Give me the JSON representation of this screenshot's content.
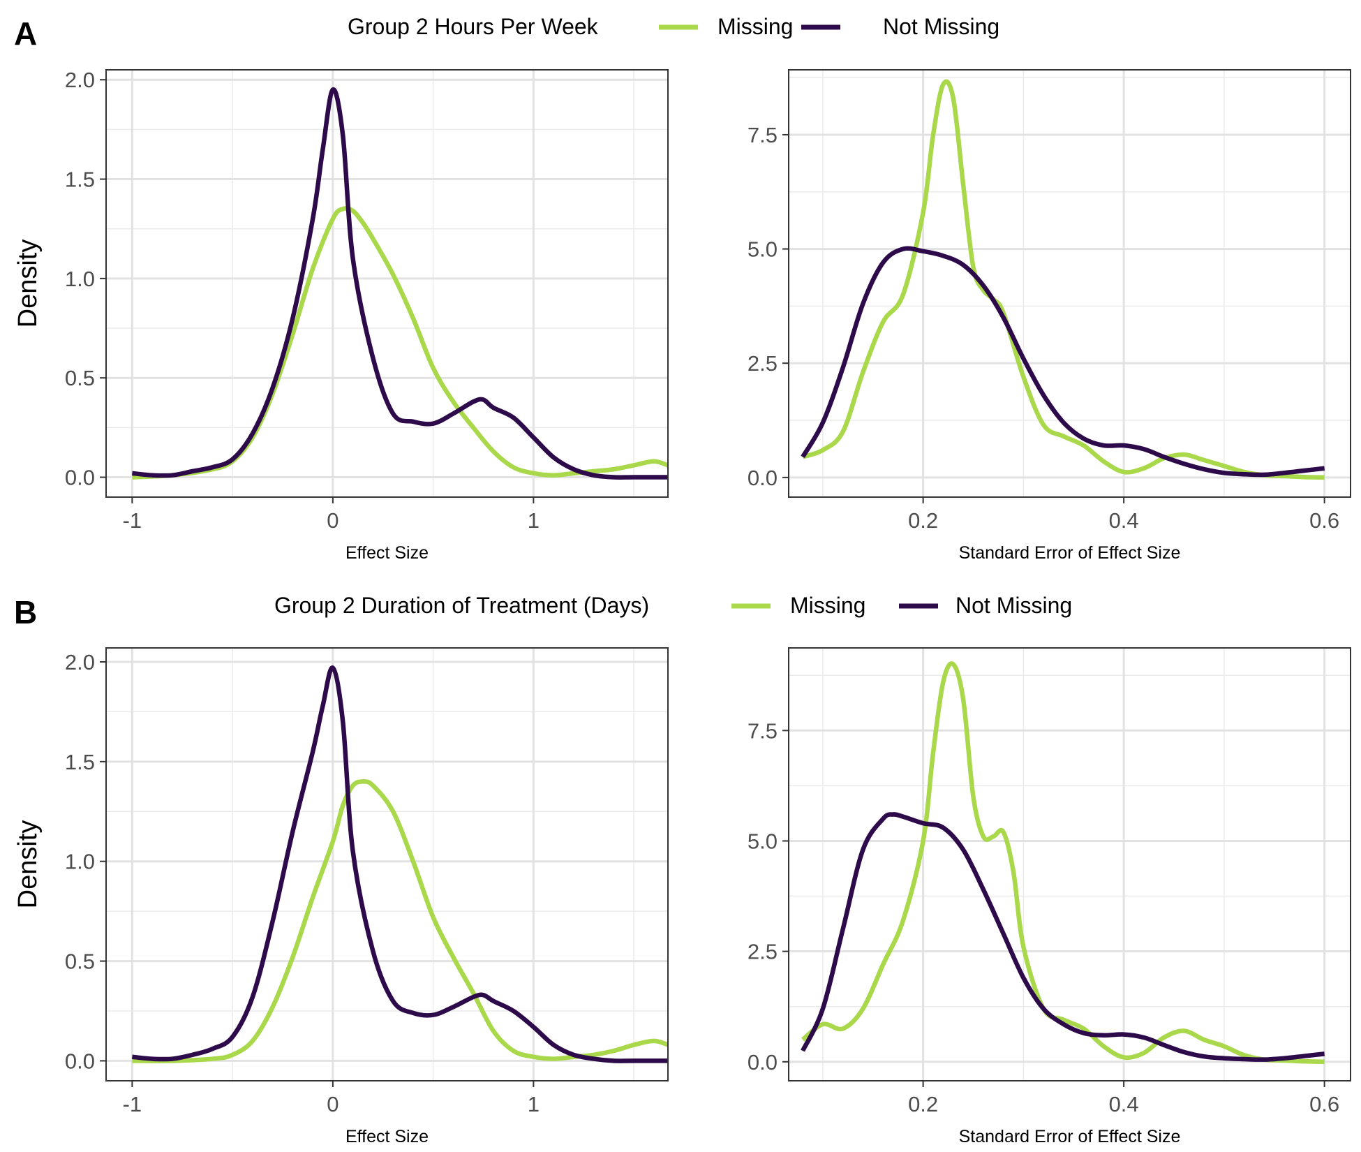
{
  "panels": [
    {
      "label": "A",
      "legend": {
        "title": "Group 2 Hours Per Week",
        "items": [
          "Missing",
          "Not Missing"
        ]
      }
    },
    {
      "label": "B",
      "legend": {
        "title": "Group 2 Duration of Treatment (Days)",
        "items": [
          "Missing",
          "Not Missing"
        ]
      }
    }
  ],
  "colors": {
    "missing": "#a9d84a",
    "not_missing": "#2d0a4a"
  },
  "chart_data": [
    {
      "type": "line",
      "panel": "A",
      "xlabel": "Effect Size",
      "ylabel": "Density",
      "xlim": [
        -1.13,
        1.67
      ],
      "ylim": [
        -0.1,
        2.05
      ],
      "x_ticks": [
        -1,
        0,
        1
      ],
      "x_tick_labels": [
        "-1",
        "0",
        "1"
      ],
      "y_ticks": [
        0,
        0.5,
        1.0,
        1.5,
        2.0
      ],
      "y_tick_labels": [
        "0.0",
        "0.5",
        "1.0",
        "1.5",
        "2.0"
      ],
      "grid": true,
      "series": [
        {
          "name": "Missing",
          "color": "#a9d84a",
          "x": [
            -1.0,
            -0.8,
            -0.6,
            -0.5,
            -0.4,
            -0.3,
            -0.2,
            -0.1,
            0.0,
            0.05,
            0.1,
            0.15,
            0.2,
            0.3,
            0.4,
            0.5,
            0.6,
            0.7,
            0.8,
            0.9,
            1.0,
            1.1,
            1.2,
            1.3,
            1.4,
            1.5,
            1.6,
            1.67
          ],
          "y": [
            0.0,
            0.01,
            0.04,
            0.08,
            0.2,
            0.42,
            0.72,
            1.05,
            1.3,
            1.35,
            1.34,
            1.28,
            1.2,
            1.02,
            0.8,
            0.55,
            0.38,
            0.25,
            0.13,
            0.05,
            0.02,
            0.01,
            0.02,
            0.03,
            0.04,
            0.06,
            0.08,
            0.06
          ]
        },
        {
          "name": "Not Missing",
          "color": "#2d0a4a",
          "x": [
            -1.0,
            -0.9,
            -0.8,
            -0.7,
            -0.6,
            -0.5,
            -0.4,
            -0.3,
            -0.2,
            -0.1,
            -0.05,
            0.0,
            0.05,
            0.1,
            0.2,
            0.3,
            0.4,
            0.5,
            0.6,
            0.7,
            0.75,
            0.8,
            0.9,
            1.0,
            1.1,
            1.2,
            1.3,
            1.4,
            1.5,
            1.67
          ],
          "y": [
            0.02,
            0.01,
            0.01,
            0.03,
            0.05,
            0.09,
            0.22,
            0.45,
            0.8,
            1.3,
            1.65,
            1.95,
            1.72,
            1.1,
            0.6,
            0.32,
            0.28,
            0.27,
            0.32,
            0.38,
            0.39,
            0.35,
            0.3,
            0.2,
            0.1,
            0.04,
            0.01,
            0.0,
            0.0,
            0.0
          ]
        }
      ]
    },
    {
      "type": "line",
      "panel": "A",
      "xlabel": "Standard Error of Effect Size",
      "ylabel": "",
      "xlim": [
        0.066,
        0.626
      ],
      "ylim": [
        -0.43,
        8.92
      ],
      "x_ticks": [
        0.2,
        0.4,
        0.6
      ],
      "x_tick_labels": [
        "0.2",
        "0.4",
        "0.6"
      ],
      "y_ticks": [
        0,
        2.5,
        5.0,
        7.5
      ],
      "y_tick_labels": [
        "0.0",
        "2.5",
        "5.0",
        "7.5"
      ],
      "grid": true,
      "series": [
        {
          "name": "Missing",
          "color": "#a9d84a",
          "x": [
            0.08,
            0.1,
            0.12,
            0.14,
            0.16,
            0.18,
            0.2,
            0.21,
            0.22,
            0.23,
            0.24,
            0.25,
            0.26,
            0.27,
            0.28,
            0.3,
            0.32,
            0.34,
            0.36,
            0.38,
            0.4,
            0.42,
            0.44,
            0.46,
            0.48,
            0.5,
            0.52,
            0.54,
            0.56,
            0.58,
            0.6
          ],
          "y": [
            0.45,
            0.6,
            1.0,
            2.3,
            3.4,
            4.0,
            5.8,
            7.5,
            8.6,
            8.3,
            6.4,
            4.6,
            4.1,
            3.9,
            3.6,
            2.2,
            1.15,
            0.9,
            0.7,
            0.35,
            0.12,
            0.2,
            0.42,
            0.5,
            0.38,
            0.25,
            0.12,
            0.05,
            0.03,
            0.01,
            0.0
          ]
        },
        {
          "name": "Not Missing",
          "color": "#2d0a4a",
          "x": [
            0.08,
            0.1,
            0.12,
            0.14,
            0.16,
            0.18,
            0.2,
            0.22,
            0.24,
            0.26,
            0.28,
            0.3,
            0.32,
            0.34,
            0.36,
            0.38,
            0.4,
            0.42,
            0.44,
            0.46,
            0.48,
            0.5,
            0.52,
            0.54,
            0.56,
            0.58,
            0.6
          ],
          "y": [
            0.45,
            1.2,
            2.4,
            3.8,
            4.7,
            5.0,
            4.95,
            4.85,
            4.65,
            4.2,
            3.5,
            2.6,
            1.8,
            1.2,
            0.85,
            0.7,
            0.7,
            0.62,
            0.45,
            0.3,
            0.18,
            0.1,
            0.07,
            0.06,
            0.1,
            0.15,
            0.2
          ]
        }
      ]
    },
    {
      "type": "line",
      "panel": "B",
      "xlabel": "Effect Size",
      "ylabel": "Density",
      "xlim": [
        -1.13,
        1.67
      ],
      "ylim": [
        -0.1,
        2.07
      ],
      "x_ticks": [
        -1,
        0,
        1
      ],
      "x_tick_labels": [
        "-1",
        "0",
        "1"
      ],
      "y_ticks": [
        0,
        0.5,
        1.0,
        1.5,
        2.0
      ],
      "y_tick_labels": [
        "0.0",
        "0.5",
        "1.0",
        "1.5",
        "2.0"
      ],
      "grid": true,
      "series": [
        {
          "name": "Missing",
          "color": "#a9d84a",
          "x": [
            -1.0,
            -0.8,
            -0.6,
            -0.5,
            -0.4,
            -0.3,
            -0.2,
            -0.1,
            0.0,
            0.05,
            0.1,
            0.15,
            0.2,
            0.3,
            0.4,
            0.5,
            0.6,
            0.7,
            0.8,
            0.9,
            1.0,
            1.1,
            1.2,
            1.3,
            1.4,
            1.5,
            1.6,
            1.67
          ],
          "y": [
            0.0,
            0.0,
            0.01,
            0.03,
            0.1,
            0.27,
            0.52,
            0.82,
            1.1,
            1.28,
            1.38,
            1.4,
            1.38,
            1.25,
            1.0,
            0.72,
            0.52,
            0.34,
            0.15,
            0.05,
            0.02,
            0.01,
            0.02,
            0.03,
            0.05,
            0.08,
            0.1,
            0.08
          ]
        },
        {
          "name": "Not Missing",
          "color": "#2d0a4a",
          "x": [
            -1.0,
            -0.9,
            -0.8,
            -0.7,
            -0.6,
            -0.5,
            -0.4,
            -0.3,
            -0.2,
            -0.1,
            -0.05,
            0.0,
            0.05,
            0.1,
            0.2,
            0.3,
            0.4,
            0.5,
            0.6,
            0.7,
            0.75,
            0.8,
            0.9,
            1.0,
            1.1,
            1.2,
            1.3,
            1.4,
            1.5,
            1.67
          ],
          "y": [
            0.02,
            0.01,
            0.01,
            0.03,
            0.06,
            0.12,
            0.32,
            0.7,
            1.15,
            1.55,
            1.78,
            1.97,
            1.7,
            1.05,
            0.55,
            0.3,
            0.24,
            0.23,
            0.27,
            0.32,
            0.33,
            0.3,
            0.25,
            0.17,
            0.08,
            0.03,
            0.01,
            0.0,
            0.0,
            0.0
          ]
        }
      ]
    },
    {
      "type": "line",
      "panel": "B",
      "xlabel": "Standard Error of Effect Size",
      "ylabel": "",
      "xlim": [
        0.066,
        0.626
      ],
      "ylim": [
        -0.43,
        9.37
      ],
      "x_ticks": [
        0.2,
        0.4,
        0.6
      ],
      "x_tick_labels": [
        "0.2",
        "0.4",
        "0.6"
      ],
      "y_ticks": [
        0,
        2.5,
        5.0,
        7.5
      ],
      "y_tick_labels": [
        "0.0",
        "2.5",
        "5.0",
        "7.5"
      ],
      "grid": true,
      "series": [
        {
          "name": "Missing",
          "color": "#a9d84a",
          "x": [
            0.08,
            0.1,
            0.12,
            0.14,
            0.16,
            0.18,
            0.2,
            0.21,
            0.22,
            0.23,
            0.24,
            0.25,
            0.26,
            0.27,
            0.28,
            0.29,
            0.3,
            0.32,
            0.34,
            0.36,
            0.38,
            0.4,
            0.42,
            0.44,
            0.46,
            0.48,
            0.5,
            0.52,
            0.54,
            0.56,
            0.58,
            0.6
          ],
          "y": [
            0.5,
            0.85,
            0.75,
            1.2,
            2.2,
            3.2,
            5.0,
            7.0,
            8.6,
            9.0,
            8.2,
            6.0,
            5.1,
            5.1,
            5.2,
            4.3,
            2.6,
            1.2,
            0.95,
            0.75,
            0.35,
            0.1,
            0.2,
            0.55,
            0.7,
            0.5,
            0.35,
            0.15,
            0.05,
            0.03,
            0.01,
            0.0
          ]
        },
        {
          "name": "Not Missing",
          "color": "#2d0a4a",
          "x": [
            0.08,
            0.1,
            0.12,
            0.14,
            0.16,
            0.17,
            0.18,
            0.2,
            0.22,
            0.24,
            0.26,
            0.28,
            0.3,
            0.32,
            0.34,
            0.36,
            0.38,
            0.4,
            0.42,
            0.44,
            0.46,
            0.48,
            0.5,
            0.52,
            0.54,
            0.56,
            0.58,
            0.6
          ],
          "y": [
            0.25,
            1.2,
            3.0,
            4.8,
            5.5,
            5.6,
            5.55,
            5.4,
            5.3,
            4.8,
            3.9,
            2.9,
            1.9,
            1.2,
            0.85,
            0.65,
            0.6,
            0.62,
            0.55,
            0.38,
            0.22,
            0.12,
            0.08,
            0.06,
            0.05,
            0.08,
            0.13,
            0.18
          ]
        }
      ]
    }
  ]
}
